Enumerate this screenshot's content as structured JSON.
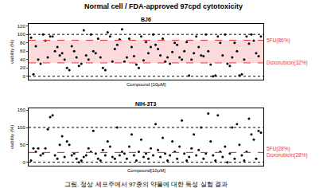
{
  "title": "Normal cell / FDA-approved 97cpd cytotoxicity",
  "caption": "그림. 정상 세포주에서 97종의 약물에 대한 독성 실험 결과",
  "chart_data": [
    {
      "type": "scatter",
      "title": "BJ6",
      "x_label": "Compound [10μM]",
      "y_label": "viability (%)",
      "x": [
        1,
        2,
        3,
        4,
        5,
        6,
        7,
        8,
        9,
        10,
        11,
        12,
        13,
        14,
        15,
        16,
        17,
        18,
        19,
        20,
        21,
        22,
        23,
        24,
        25,
        26,
        27,
        28,
        29,
        30,
        31,
        32,
        33,
        34,
        35,
        36,
        37,
        38,
        39,
        40,
        41,
        42,
        43,
        44,
        45,
        46,
        47,
        48,
        49,
        50,
        51,
        52,
        53,
        54,
        55,
        56,
        57,
        58,
        59,
        60,
        61,
        62,
        63,
        64,
        65,
        66,
        67,
        68,
        69,
        70,
        71,
        72,
        73,
        74,
        75,
        76,
        77,
        78,
        79,
        80,
        81,
        82,
        83,
        84,
        85,
        86,
        87,
        88,
        89,
        90,
        91,
        92,
        93,
        94,
        95,
        96,
        97
      ],
      "values": [
        92,
        5,
        72,
        40,
        30,
        100,
        85,
        45,
        95,
        95,
        60,
        70,
        50,
        55,
        40,
        20,
        15,
        72,
        60,
        45,
        25,
        30,
        110,
        50,
        40,
        100,
        60,
        55,
        90,
        45,
        20,
        15,
        105,
        95,
        35,
        65,
        75,
        88,
        112,
        35,
        45,
        90,
        70,
        48,
        28,
        20,
        95,
        38,
        82,
        55,
        70,
        100,
        75,
        65,
        50,
        90,
        35,
        45,
        30,
        58,
        80,
        75,
        45,
        40,
        60,
        82,
        2,
        40,
        55,
        95,
        70,
        50,
        48,
        100,
        60,
        28,
        0,
        2,
        95,
        80,
        50,
        100,
        30,
        25,
        45,
        80,
        60,
        2,
        5,
        40,
        95,
        78,
        100,
        85,
        55,
        48,
        95
      ],
      "color": "#000000",
      "marker": "circle",
      "xlim": [
        0,
        98
      ],
      "ylim": [
        -8,
        125
      ],
      "yticks": [
        0,
        20,
        40,
        60,
        80,
        100,
        120
      ],
      "grid": false,
      "tick_labels": "y",
      "guide_lines": {
        "values": [
          0,
          100
        ],
        "color": "#000000",
        "line_style": "dot"
      },
      "band": {
        "from": 32,
        "to": 86,
        "color": "#f8caca"
      },
      "reference_lines": [
        {
          "value": 86,
          "label": "5FU(86%)",
          "color": "#e23b3b",
          "line_style": "dash"
        },
        {
          "value": 32,
          "label": "Doxorubicin(32%)",
          "color": "#e23b3b",
          "line_style": "dash"
        }
      ]
    },
    {
      "type": "scatter",
      "title": "NIH-3T3",
      "x_label": "Compound[10μM]",
      "y_label": "viability (%)",
      "x": [
        1,
        2,
        3,
        4,
        5,
        6,
        7,
        8,
        9,
        10,
        11,
        12,
        13,
        14,
        15,
        16,
        17,
        18,
        19,
        20,
        21,
        22,
        23,
        24,
        25,
        26,
        27,
        28,
        29,
        30,
        31,
        32,
        33,
        34,
        35,
        36,
        37,
        38,
        39,
        40,
        41,
        42,
        43,
        44,
        45,
        46,
        47,
        48,
        49,
        50,
        51,
        52,
        53,
        54,
        55,
        56,
        57,
        58,
        59,
        60,
        61,
        62,
        63,
        64,
        65,
        66,
        67,
        68,
        69,
        70,
        71,
        72,
        73,
        74,
        75,
        76,
        77,
        78,
        79,
        80,
        81,
        82,
        83,
        84,
        85,
        86,
        87,
        88,
        89,
        90,
        91,
        92,
        93,
        94,
        95,
        96,
        97
      ],
      "values": [
        5,
        40,
        30,
        40,
        20,
        25,
        40,
        95,
        130,
        135,
        20,
        10,
        50,
        75,
        15,
        60,
        50,
        20,
        25,
        10,
        0,
        5,
        15,
        20,
        40,
        30,
        90,
        25,
        10,
        5,
        35,
        20,
        60,
        45,
        15,
        10,
        100,
        20,
        30,
        25,
        10,
        45,
        80,
        20,
        5,
        30,
        65,
        15,
        25,
        10,
        40,
        20,
        110,
        35,
        15,
        70,
        25,
        5,
        20,
        60,
        30,
        10,
        45,
        120,
        25,
        5,
        15,
        40,
        80,
        20,
        35,
        100,
        10,
        25,
        140,
        60,
        20,
        5,
        135,
        30,
        15,
        45,
        0,
        25,
        100,
        10,
        110,
        50,
        20,
        5,
        30,
        125,
        80,
        65,
        10,
        90,
        85
      ],
      "color": "#000000",
      "marker": "circle",
      "xlim": [
        0,
        98
      ],
      "ylim": [
        -10,
        155
      ],
      "yticks": [
        0,
        50,
        100,
        150
      ],
      "grid": false,
      "tick_labels": "y",
      "guide_lines": {
        "values": [
          0,
          100
        ],
        "color": "#000000",
        "line_style": "dot"
      },
      "reference_lines": [
        {
          "value": 28,
          "label": "5FU(28%)",
          "color": "#e23b3b",
          "line_style": "dash"
        },
        {
          "value": 28,
          "label": "Doxorubicin(28%)",
          "color": "#e23b3b",
          "line_style": "dash"
        }
      ]
    }
  ]
}
